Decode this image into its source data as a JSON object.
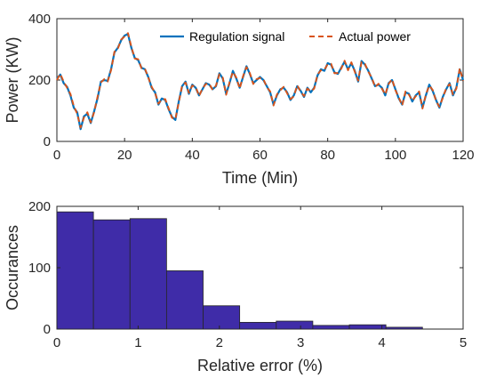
{
  "chart_data": [
    {
      "type": "line",
      "title": "",
      "xlabel": "Time (Min)",
      "ylabel": "Power (KW)",
      "xlim": [
        0,
        120
      ],
      "ylim": [
        0,
        400
      ],
      "xticks": [
        "0",
        "20",
        "40",
        "60",
        "80",
        "100",
        "120"
      ],
      "yticks": [
        "0",
        "200",
        "400"
      ],
      "grid": false,
      "legend": "top-right",
      "colors": {
        "regulation": "#0072BD",
        "actual": "#D95319"
      },
      "series": [
        {
          "name": "Regulation signal",
          "style": "solid",
          "x": [
            0,
            1,
            2,
            3,
            4,
            5,
            6,
            7,
            8,
            9,
            10,
            11,
            12,
            13,
            14,
            15,
            16,
            17,
            18,
            19,
            20,
            21,
            22,
            23,
            24,
            25,
            26,
            27,
            28,
            29,
            30,
            31,
            32,
            33,
            34,
            35,
            36,
            37,
            38,
            39,
            40,
            41,
            42,
            43,
            44,
            45,
            46,
            47,
            48,
            49,
            50,
            51,
            52,
            53,
            54,
            55,
            56,
            57,
            58,
            59,
            60,
            61,
            62,
            63,
            64,
            65,
            66,
            67,
            68,
            69,
            70,
            71,
            72,
            73,
            74,
            75,
            76,
            77,
            78,
            79,
            80,
            81,
            82,
            83,
            84,
            85,
            86,
            87,
            88,
            89,
            90,
            91,
            92,
            93,
            94,
            95,
            96,
            97,
            98,
            99,
            100,
            101,
            102,
            103,
            104,
            105,
            106,
            107,
            108,
            109,
            110,
            111,
            112,
            113,
            114,
            115,
            116,
            117,
            118,
            119,
            120
          ],
          "values": [
            205,
            218,
            190,
            178,
            150,
            110,
            95,
            40,
            82,
            90,
            60,
            98,
            140,
            195,
            200,
            197,
            235,
            290,
            305,
            330,
            345,
            350,
            305,
            272,
            265,
            240,
            235,
            210,
            175,
            160,
            120,
            140,
            135,
            105,
            80,
            70,
            130,
            180,
            195,
            155,
            185,
            175,
            150,
            170,
            190,
            185,
            170,
            180,
            222,
            205,
            155,
            190,
            230,
            205,
            175,
            210,
            245,
            220,
            190,
            200,
            210,
            200,
            180,
            160,
            120,
            150,
            170,
            175,
            160,
            135,
            150,
            180,
            165,
            145,
            175,
            160,
            175,
            215,
            235,
            230,
            255,
            250,
            225,
            220,
            240,
            260,
            235,
            255,
            230,
            195,
            262,
            250,
            230,
            205,
            180,
            185,
            175,
            150,
            190,
            200,
            170,
            140,
            120,
            160,
            155,
            130,
            150,
            160,
            110,
            150,
            185,
            165,
            135,
            110,
            145,
            170,
            190,
            150,
            175,
            235,
            200
          ]
        },
        {
          "name": "Actual power",
          "style": "dashed",
          "x": [
            0,
            1,
            2,
            3,
            4,
            5,
            6,
            7,
            8,
            9,
            10,
            11,
            12,
            13,
            14,
            15,
            16,
            17,
            18,
            19,
            20,
            21,
            22,
            23,
            24,
            25,
            26,
            27,
            28,
            29,
            30,
            31,
            32,
            33,
            34,
            35,
            36,
            37,
            38,
            39,
            40,
            41,
            42,
            43,
            44,
            45,
            46,
            47,
            48,
            49,
            50,
            51,
            52,
            53,
            54,
            55,
            56,
            57,
            58,
            59,
            60,
            61,
            62,
            63,
            64,
            65,
            66,
            67,
            68,
            69,
            70,
            71,
            72,
            73,
            74,
            75,
            76,
            77,
            78,
            79,
            80,
            81,
            82,
            83,
            84,
            85,
            86,
            87,
            88,
            89,
            90,
            91,
            92,
            93,
            94,
            95,
            96,
            97,
            98,
            99,
            100,
            101,
            102,
            103,
            104,
            105,
            106,
            107,
            108,
            109,
            110,
            111,
            112,
            113,
            114,
            115,
            116,
            117,
            118,
            119,
            120
          ],
          "values": [
            200,
            220,
            195,
            175,
            155,
            115,
            90,
            45,
            78,
            95,
            62,
            95,
            145,
            192,
            203,
            195,
            232,
            292,
            302,
            332,
            342,
            353,
            308,
            270,
            268,
            238,
            237,
            208,
            178,
            158,
            123,
            137,
            138,
            108,
            77,
            72,
            127,
            182,
            192,
            158,
            182,
            178,
            148,
            172,
            187,
            188,
            168,
            182,
            219,
            208,
            152,
            193,
            227,
            208,
            172,
            213,
            242,
            223,
            187,
            203,
            207,
            203,
            177,
            163,
            117,
            153,
            167,
            178,
            157,
            138,
            147,
            183,
            162,
            148,
            172,
            163,
            172,
            218,
            232,
            233,
            252,
            253,
            222,
            223,
            237,
            263,
            232,
            258,
            227,
            198,
            259,
            253,
            227,
            208,
            177,
            188,
            172,
            153,
            187,
            203,
            167,
            143,
            117,
            163,
            152,
            133,
            147,
            163,
            107,
            153,
            182,
            168,
            132,
            113,
            142,
            173,
            187,
            153,
            172,
            238,
            197
          ]
        }
      ]
    },
    {
      "type": "bar",
      "subtype": "histogram",
      "title": "",
      "xlabel": "Relative error (%)",
      "ylabel": "Occurances",
      "xlim": [
        0,
        5
      ],
      "ylim": [
        0,
        200
      ],
      "xticks": [
        "0",
        "1",
        "2",
        "3",
        "4",
        "5"
      ],
      "yticks": [
        "0",
        "100",
        "200"
      ],
      "grid": false,
      "colors": {
        "bar": "#3F2CA8",
        "edge": "#262626"
      },
      "bin_edges": [
        0,
        0.45,
        0.9,
        1.35,
        1.8,
        2.25,
        2.7,
        3.15,
        3.6,
        4.05,
        4.5
      ],
      "values": [
        191,
        178,
        180,
        95,
        38,
        11,
        13,
        6,
        7,
        3
      ]
    }
  ]
}
